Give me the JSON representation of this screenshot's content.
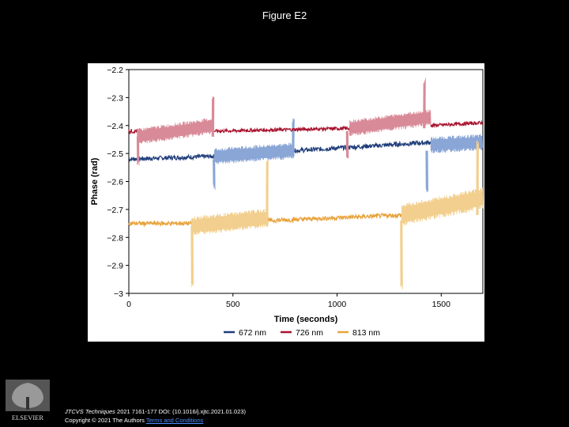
{
  "slide": {
    "title": "Figure E2",
    "citation": {
      "journal": "JTCVS Techniques",
      "details": " 2021 7161-177 DOI: (10.1016/j.xjtc.2021.01.023)",
      "copyright": "Copyright © 2021 The Authors",
      "link_text": "Terms and Conditions"
    },
    "logo_text": "ELSEVIER"
  },
  "chart_data": {
    "type": "line",
    "title": "",
    "xlabel": "Time (seconds)",
    "ylabel": "Phase (rad)",
    "xlim": [
      0,
      1700
    ],
    "ylim": [
      -3.0,
      -2.2
    ],
    "xticks": [
      0,
      500,
      1000,
      1500
    ],
    "xtick_labels": [
      "0",
      "500",
      "1000",
      "1500"
    ],
    "yticks": [
      -2.2,
      -2.3,
      -2.4,
      -2.5,
      -2.6,
      -2.7,
      -2.8,
      -2.9,
      -3.0
    ],
    "ytick_labels": [
      "−2.2",
      "−2.3",
      "−2.4",
      "−2.5",
      "−2.6",
      "−2.7",
      "−2.8",
      "−2.9",
      "−3"
    ],
    "legend_position": "bottom",
    "series": [
      {
        "name": "672 nm",
        "color": "#1f3d7a",
        "light_color": "#8aa6d6",
        "segments": [
          {
            "x0": 0,
            "x1": 410,
            "base0": -2.52,
            "base1": -2.51,
            "amp": 0.008
          },
          {
            "x0": 410,
            "x1": 795,
            "base0": -2.51,
            "base1": -2.49,
            "amp": 0.03,
            "osc": true
          },
          {
            "x0": 795,
            "x1": 1450,
            "base0": -2.49,
            "base1": -2.46,
            "amp": 0.008
          },
          {
            "x0": 1450,
            "x1": 1700,
            "base0": -2.47,
            "base1": -2.46,
            "amp": 0.03,
            "osc": true
          }
        ],
        "spikes": [
          [
            410,
            -2.62
          ],
          [
            790,
            -2.38
          ],
          [
            1432,
            -2.63
          ]
        ]
      },
      {
        "name": "726 nm",
        "color": "#a8132e",
        "light_color": "#d98a98",
        "segments": [
          {
            "x0": 0,
            "x1": 40,
            "base0": -2.42,
            "base1": -2.42,
            "amp": 0.008
          },
          {
            "x0": 40,
            "x1": 410,
            "base0": -2.44,
            "base1": -2.4,
            "amp": 0.03,
            "osc": true
          },
          {
            "x0": 410,
            "x1": 1060,
            "base0": -2.42,
            "base1": -2.41,
            "amp": 0.006
          },
          {
            "x0": 1060,
            "x1": 1450,
            "base0": -2.41,
            "base1": -2.37,
            "amp": 0.03,
            "osc": true
          },
          {
            "x0": 1450,
            "x1": 1700,
            "base0": -2.4,
            "base1": -2.39,
            "amp": 0.006
          }
        ],
        "spikes": [
          [
            45,
            -2.54
          ],
          [
            405,
            -2.3
          ],
          [
            1050,
            -2.52
          ],
          [
            1420,
            -2.24
          ]
        ]
      },
      {
        "name": "813 nm",
        "color": "#e8a33d",
        "light_color": "#f2cf8e",
        "segments": [
          {
            "x0": 0,
            "x1": 300,
            "base0": -2.75,
            "base1": -2.75,
            "amp": 0.008
          },
          {
            "x0": 300,
            "x1": 670,
            "base0": -2.76,
            "base1": -2.73,
            "amp": 0.035,
            "osc": true
          },
          {
            "x0": 670,
            "x1": 1310,
            "base0": -2.74,
            "base1": -2.72,
            "amp": 0.008
          },
          {
            "x0": 1310,
            "x1": 1700,
            "base0": -2.72,
            "base1": -2.66,
            "amp": 0.04,
            "osc": true
          }
        ],
        "spikes": [
          [
            305,
            -2.97
          ],
          [
            665,
            -2.52
          ],
          [
            1310,
            -2.98
          ],
          [
            1675,
            -2.46
          ]
        ]
      }
    ]
  }
}
